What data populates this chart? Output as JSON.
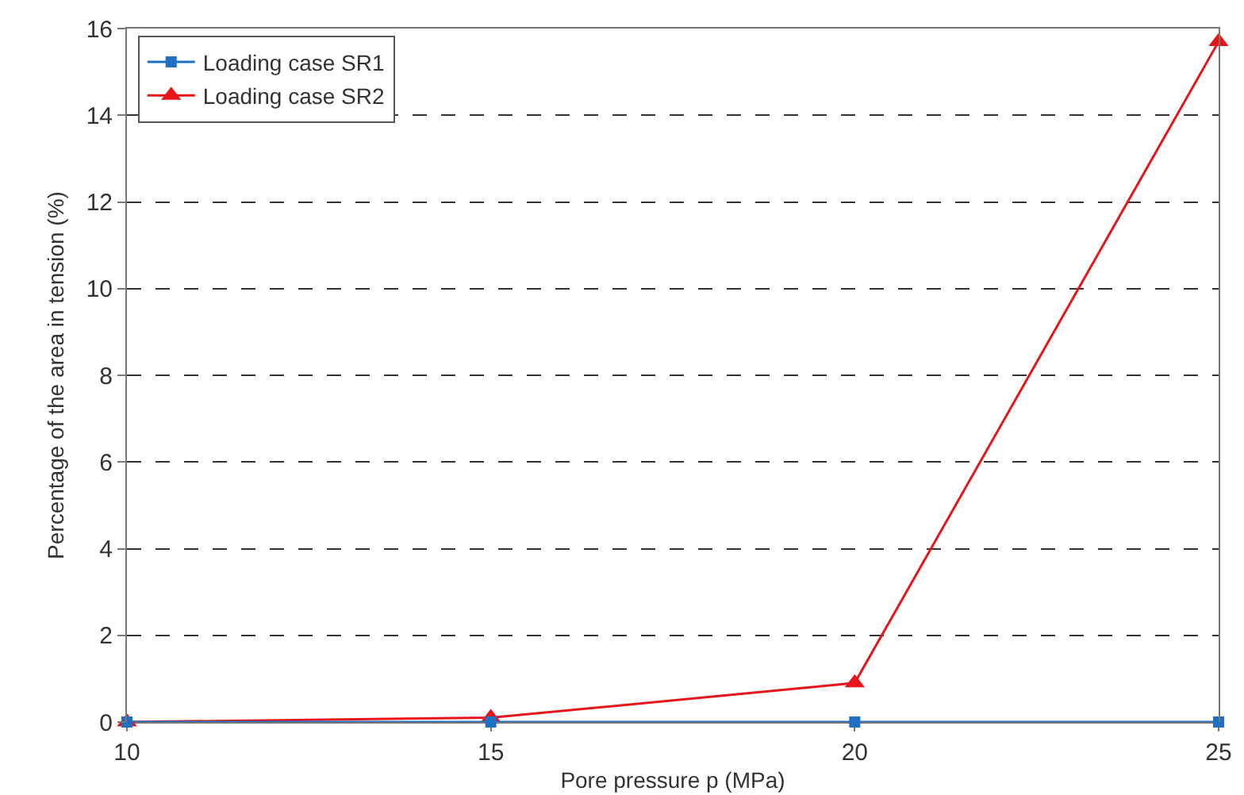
{
  "chart_data": {
    "type": "line",
    "xlabel": "Pore pressure p (MPa)",
    "ylabel": "Percentage of the area in tension (%)",
    "x": [
      10,
      15,
      20,
      25
    ],
    "series": [
      {
        "name": "Loading case SR1",
        "color": "#1f6fc5",
        "marker": "square",
        "values": [
          0,
          0,
          0,
          0
        ]
      },
      {
        "name": "Loading case SR2",
        "color": "#e8141b",
        "marker": "triangle",
        "values": [
          0,
          0.1,
          0.9,
          15.7
        ]
      }
    ],
    "xlim": [
      10,
      25
    ],
    "xticks": [
      10,
      15,
      20,
      25
    ],
    "ylim": [
      0,
      16
    ],
    "yticks": [
      0,
      2,
      4,
      6,
      8,
      10,
      12,
      14,
      16
    ],
    "grid": "y",
    "line_style": "solid",
    "legend": "top left"
  }
}
